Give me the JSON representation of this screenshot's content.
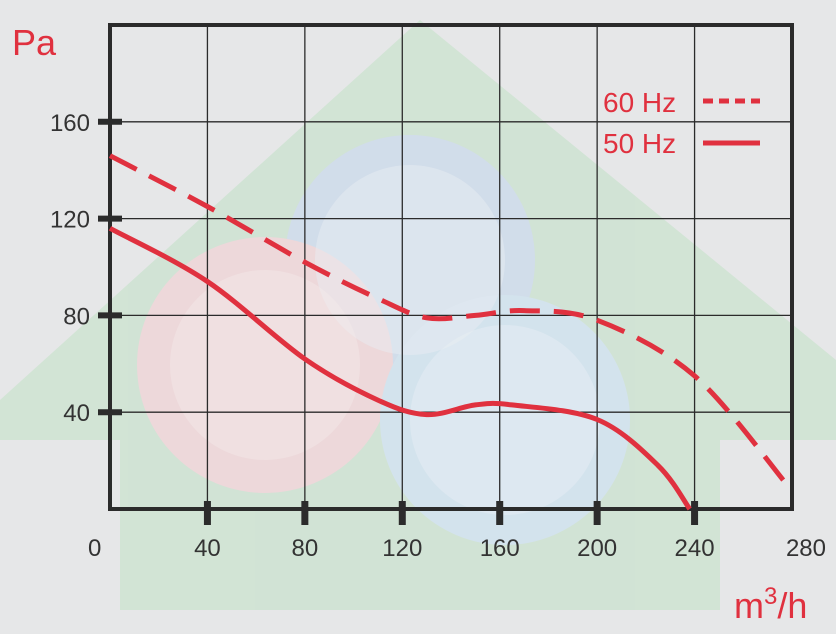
{
  "chart_data": {
    "type": "line",
    "ylabel": "Pa",
    "xlabel_base": "m",
    "xlabel_sup": "3",
    "xlabel_tail": "/h",
    "xlim": [
      0,
      280
    ],
    "ylim": [
      0,
      200
    ],
    "x_ticks": [
      "0",
      "40",
      "80",
      "120",
      "160",
      "200",
      "240",
      "280"
    ],
    "y_ticks": [
      "40",
      "80",
      "120",
      "160"
    ],
    "grid": true,
    "legend_position": "top-right",
    "series": [
      {
        "name": "60 Hz",
        "style": "dashed",
        "color": "#e0313f",
        "x": [
          0,
          40,
          80,
          110,
          130,
          150,
          170,
          200,
          240,
          278
        ],
        "y": [
          146,
          125,
          102,
          87,
          79,
          80,
          82,
          78,
          55,
          10
        ]
      },
      {
        "name": "50 Hz",
        "style": "solid",
        "color": "#e0313f",
        "x": [
          0,
          40,
          80,
          110,
          130,
          150,
          165,
          200,
          225,
          238
        ],
        "y": [
          116,
          94,
          62,
          45,
          39,
          43,
          43,
          37,
          18,
          0
        ]
      }
    ]
  }
}
